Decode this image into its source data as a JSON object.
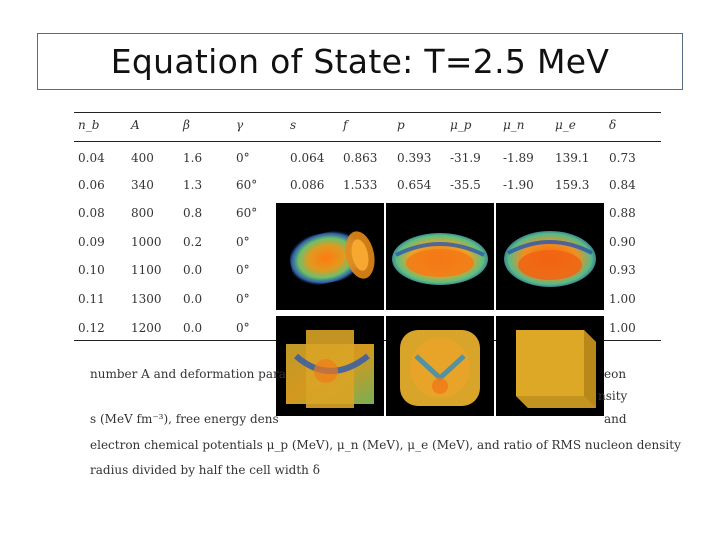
{
  "slide": {
    "title": "Equation of State: T=2.5 MeV"
  },
  "table": {
    "headers": [
      "n_b",
      "A",
      "β",
      "γ",
      "s",
      "f",
      "p",
      "μ_p",
      "μ_n",
      "μ_e",
      "δ"
    ],
    "rows": [
      [
        "0.04",
        "400",
        "1.6",
        "0°",
        "0.064",
        "0.863",
        "0.393",
        "-31.9",
        "-1.89",
        "139.1",
        "0.73"
      ],
      [
        "0.06",
        "340",
        "1.3",
        "60°",
        "0.086",
        "1.533",
        "0.654",
        "-35.5",
        "-1.90",
        "159.3",
        "0.84"
      ],
      [
        "0.08",
        "800",
        "0.8",
        "60°",
        "",
        "",
        "",
        "",
        "",
        "",
        "0.88"
      ],
      [
        "0.09",
        "1000",
        "0.2",
        "0°",
        "",
        "",
        "",
        "",
        "",
        "",
        "0.90"
      ],
      [
        "0.10",
        "1100",
        "0.0",
        "0°",
        "",
        "",
        "",
        "",
        "",
        "",
        "0.93"
      ],
      [
        "0.11",
        "1300",
        "0.0",
        "0°",
        "",
        "",
        "",
        "",
        "",
        "",
        "1.00"
      ],
      [
        "0.12",
        "1200",
        "0.0",
        "0°",
        "",
        "",
        "",
        "",
        "",
        "",
        "1.00"
      ]
    ]
  },
  "caption": {
    "line1": "number A and deformation para",
    "line1_right": "eon",
    "line2": "s (MeV fm⁻³), free energy dens",
    "line2_right": "nsity",
    "line2_right2": "and",
    "line3": "electron chemical potentials μ_p (MeV), μ_n (MeV), μ_e (MeV), and ratio of RMS nucleon density",
    "line4": "radius divided by half the cell width δ"
  },
  "panels": [
    {
      "shape": "cylinder-icon"
    },
    {
      "shape": "slab-icon"
    },
    {
      "shape": "slab-icon"
    },
    {
      "shape": "cross-tube-icon"
    },
    {
      "shape": "bubble-icon"
    },
    {
      "shape": "cube-icon"
    }
  ]
}
